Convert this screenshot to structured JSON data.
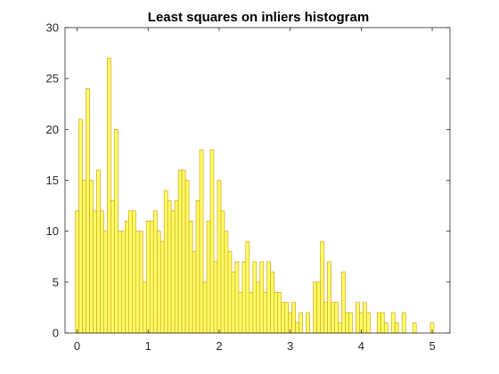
{
  "chart_data": {
    "type": "bar",
    "title": "Least squares on inliers histogram",
    "xlabel": "",
    "ylabel": "",
    "xlim": [
      -0.17,
      5.25
    ],
    "ylim": [
      0,
      30
    ],
    "xticks": [
      "0",
      "1",
      "2",
      "3",
      "4",
      "5"
    ],
    "yticks": [
      "0",
      "5",
      "10",
      "15",
      "20",
      "25",
      "30"
    ],
    "grid": false,
    "bar_color": "#ffff66",
    "edge_color": "#d4a017",
    "bin_width": 0.05,
    "bin_centers": [
      0.0,
      0.05,
      0.1,
      0.15,
      0.2,
      0.25,
      0.3,
      0.35,
      0.4,
      0.45,
      0.5,
      0.55,
      0.6,
      0.65,
      0.7,
      0.75,
      0.8,
      0.85,
      0.9,
      0.95,
      1.0,
      1.05,
      1.1,
      1.15,
      1.2,
      1.25,
      1.3,
      1.35,
      1.4,
      1.45,
      1.5,
      1.55,
      1.6,
      1.65,
      1.7,
      1.75,
      1.8,
      1.85,
      1.9,
      1.95,
      2.0,
      2.05,
      2.1,
      2.15,
      2.2,
      2.25,
      2.3,
      2.35,
      2.4,
      2.45,
      2.5,
      2.55,
      2.6,
      2.65,
      2.7,
      2.75,
      2.8,
      2.85,
      2.9,
      2.95,
      3.0,
      3.05,
      3.1,
      3.15,
      3.2,
      3.25,
      3.3,
      3.35,
      3.4,
      3.45,
      3.5,
      3.55,
      3.6,
      3.65,
      3.7,
      3.75,
      3.8,
      3.85,
      3.9,
      3.95,
      4.0,
      4.05,
      4.1,
      4.15,
      4.2,
      4.25,
      4.3,
      4.35,
      4.4,
      4.45,
      4.5,
      4.55,
      4.6,
      4.65,
      4.7,
      4.75,
      4.8,
      4.85,
      4.9,
      4.95,
      5.0
    ],
    "values": [
      12,
      21,
      15,
      24,
      15,
      12,
      16,
      12,
      10,
      27,
      13,
      20,
      10,
      10,
      11,
      12,
      12,
      10,
      10,
      5,
      11,
      11,
      12,
      10,
      9,
      14,
      13,
      12,
      13,
      16,
      16,
      15,
      11,
      8,
      13,
      18,
      5,
      11,
      18,
      7,
      15,
      12,
      10,
      8,
      6,
      7,
      4,
      7,
      9,
      4,
      7,
      5,
      7,
      4,
      7,
      6,
      4,
      4,
      3,
      3,
      2,
      3,
      1,
      2,
      0,
      2,
      0,
      5,
      5,
      9,
      3,
      7,
      3,
      3,
      1,
      6,
      2,
      2,
      0,
      3,
      2,
      3,
      2,
      0,
      0,
      2,
      2,
      1,
      0,
      2,
      1,
      0,
      2,
      0,
      0,
      1,
      0,
      0,
      0,
      0,
      1
    ]
  }
}
